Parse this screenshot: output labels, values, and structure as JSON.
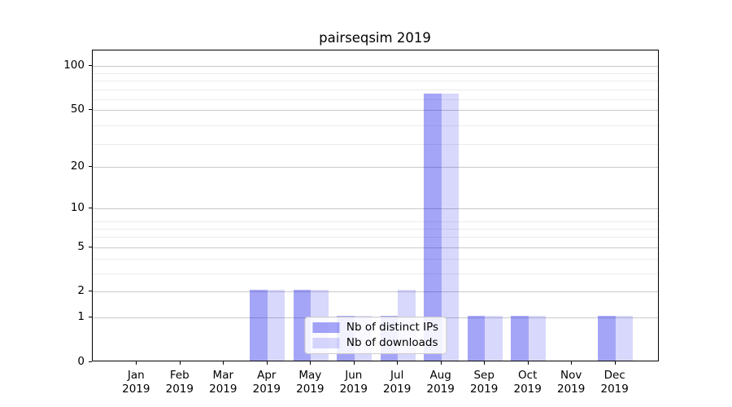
{
  "chart_data": {
    "type": "bar",
    "title": "pairseqsim 2019",
    "categories": [
      "Jan 2019",
      "Feb 2019",
      "Mar 2019",
      "Apr 2019",
      "May 2019",
      "Jun 2019",
      "Jul 2019",
      "Aug 2019",
      "Sep 2019",
      "Oct 2019",
      "Nov 2019",
      "Dec 2019"
    ],
    "series": [
      {
        "name": "Nb of distinct IPs",
        "color": "rgba(10,10,235,0.37)",
        "values": [
          0,
          0,
          0,
          2,
          2,
          1,
          1,
          63,
          1,
          1,
          0,
          1
        ]
      },
      {
        "name": "Nb of downloads",
        "color": "rgba(10,10,235,0.16)",
        "values": [
          0,
          0,
          0,
          2,
          2,
          1,
          2,
          63,
          1,
          1,
          0,
          1
        ]
      }
    ],
    "xlabel": "",
    "ylabel": "",
    "yscale": "log1p",
    "ylim": [
      0,
      127
    ],
    "yticks": [
      0,
      1,
      2,
      5,
      10,
      20,
      50,
      100
    ],
    "yticks_minor": [
      2,
      3,
      4,
      5,
      6,
      7,
      8,
      29,
      39,
      59,
      69,
      79,
      89
    ],
    "grid": {
      "on": true,
      "major_color": "#c9c9c9",
      "minor_color": "#ececec"
    },
    "legend_position": "lower center",
    "background_color": "#ffffff",
    "text_color": "#000000",
    "spine_color": "#000000"
  }
}
